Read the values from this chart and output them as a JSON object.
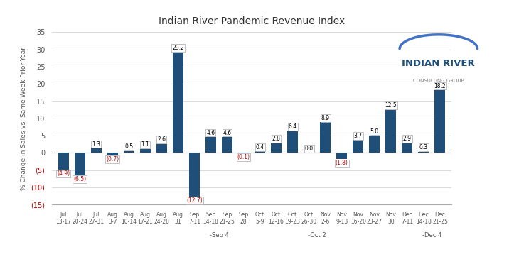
{
  "title": "Indian River Pandemic Revenue Index",
  "ylabel": "% Change in Sales vs. Same Week Prior Year",
  "bar_color": "#1F4E79",
  "label_color_positive": "#000000",
  "label_color_negative": "#C00000",
  "background_color": "#FFFFFF",
  "ylim": [
    -15,
    35
  ],
  "yticks": [
    -15,
    -10,
    -5,
    0,
    5,
    10,
    15,
    20,
    25,
    30,
    35
  ],
  "month_labels": [
    "Jul",
    "Jul",
    "Jul",
    "Aug",
    "Aug",
    "Aug",
    "Aug",
    "Aug",
    "Sep",
    "Sep",
    "Sep",
    "Sep",
    "Oct",
    "Oct",
    "Oct",
    "Oct",
    "Nov",
    "Nov",
    "Nov",
    "Nov",
    "Nov",
    "Dec",
    "Dec",
    "Dec"
  ],
  "week_labels": [
    "13-17",
    "20-24",
    "27-31",
    "3-7",
    "10-14",
    "17-21",
    "24-28",
    "31",
    "7-11",
    "14-18",
    "21-25",
    "28",
    "5-9",
    "12-16",
    "19-23",
    "26-30",
    "2-6",
    "9-13",
    "16-20",
    "23-27",
    "30",
    "7-11",
    "14-18",
    "21-25"
  ],
  "values": [
    -4.9,
    -6.5,
    1.3,
    -0.7,
    0.5,
    1.1,
    2.6,
    29.2,
    -12.7,
    4.6,
    4.6,
    -0.1,
    0.4,
    2.8,
    6.4,
    0.0,
    8.9,
    -1.8,
    3.7,
    5.0,
    12.5,
    2.9,
    0.3,
    18.2
  ],
  "group_labels": [
    "-Sep 4",
    "-Oct 2",
    "-Dec 4"
  ],
  "group_label_bar_indices": [
    9.5,
    15.5,
    22.5
  ],
  "logo_text_line1": "INDIAN RIVER",
  "logo_text_line2": "CONSULTING GROUP",
  "arc_color": "#4472C4",
  "logo_color": "#1F4E79",
  "subtitle_color": "#808080"
}
